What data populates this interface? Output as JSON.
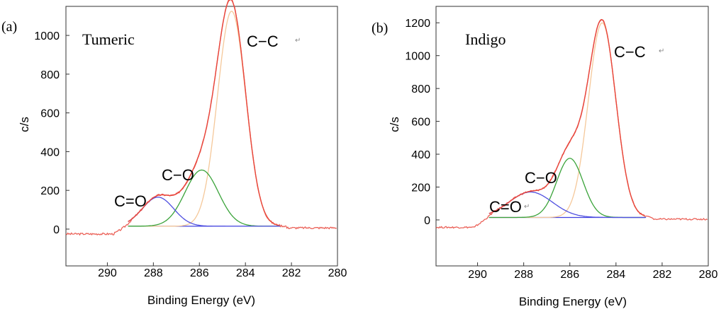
{
  "chart_data": [
    {
      "type": "line",
      "panel_label": "(a)",
      "sample_label": "Tumeric",
      "xlabel": "Binding Energy (eV)",
      "ylabel": "c/s",
      "xlim": [
        292,
        280
      ],
      "ylim": [
        -190,
        1150
      ],
      "xticks": [
        290,
        288,
        286,
        284,
        282,
        280
      ],
      "yticks": [
        0,
        200,
        400,
        600,
        800,
        1000
      ],
      "grid": false,
      "peaks": [
        {
          "label": "C−C",
          "center": 284.6,
          "height": 1110,
          "fwhm": 1.45,
          "color": "#f5c89a"
        },
        {
          "label": "C−O",
          "center": 285.9,
          "height": 290,
          "fwhm": 1.7,
          "color": "#3aa33a"
        },
        {
          "label": "C=O",
          "center": 287.8,
          "height": 150,
          "fwhm": 1.6,
          "color": "#5050e0"
        }
      ],
      "baseline": {
        "from": 289.1,
        "to": 282.5,
        "value": 15,
        "color": "#4040e0"
      },
      "raw_offset": -25,
      "envelope_color": "#e8463c"
    },
    {
      "type": "line",
      "panel_label": "(b)",
      "sample_label": "Indigo",
      "xlabel": "Binding Energy (eV)",
      "ylabel": "c/s",
      "xlim": [
        292,
        280
      ],
      "ylim": [
        -280,
        1300
      ],
      "xticks": [
        290,
        288,
        286,
        284,
        282,
        280
      ],
      "yticks": [
        0,
        200,
        400,
        600,
        800,
        1000,
        1200
      ],
      "grid": false,
      "peaks": [
        {
          "label": "C−C",
          "center": 284.6,
          "height": 1185,
          "fwhm": 1.4,
          "color": "#f5c89a"
        },
        {
          "label": "C−O",
          "center": 286.0,
          "height": 360,
          "fwhm": 1.35,
          "color": "#3aa33a"
        },
        {
          "label": "C=O",
          "center": 287.7,
          "height": 155,
          "fwhm": 2.2,
          "color": "#5050e0"
        }
      ],
      "baseline": {
        "from": 289.5,
        "to": 282.7,
        "value": 15,
        "color": "#4040e0"
      },
      "raw_offset": -45,
      "envelope_color": "#e8463c"
    }
  ]
}
